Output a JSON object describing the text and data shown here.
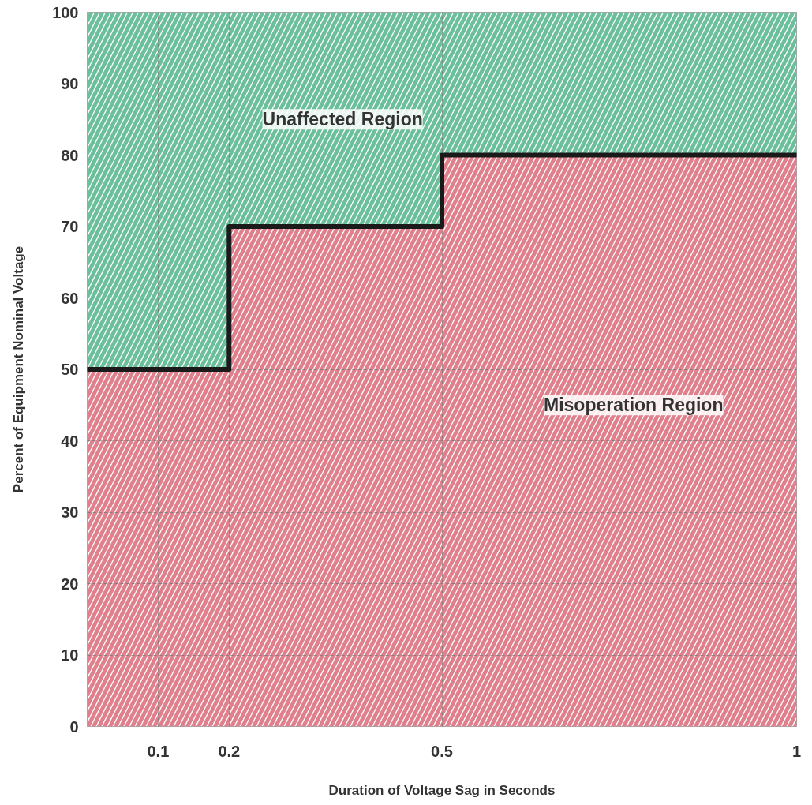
{
  "chart_data": {
    "type": "step",
    "xlabel": "Duration of Voltage Sag in Seconds",
    "ylabel": "Percent of Equipment Nominal Voltage",
    "x": [
      0,
      0.2,
      0.5,
      1
    ],
    "xlim": [
      0,
      1
    ],
    "xticks": [
      0.1,
      0.2,
      0.5,
      1
    ],
    "ylim": [
      0,
      100
    ],
    "yticks": [
      0,
      10,
      20,
      30,
      40,
      50,
      60,
      70,
      80,
      90,
      100
    ],
    "grid": true,
    "stacked": true,
    "series": [
      {
        "type": "area",
        "color": "#e0808c",
        "values": [
          50,
          70,
          80,
          80
        ]
      },
      {
        "type": "area",
        "color": "#6cbf9b",
        "values": [
          50,
          30,
          20,
          20
        ]
      },
      {
        "color": "#1a1a1a",
        "values": [
          50,
          70,
          80,
          80
        ]
      }
    ],
    "annotations": [
      "Unaffected Region",
      "Misoperation Region"
    ]
  }
}
